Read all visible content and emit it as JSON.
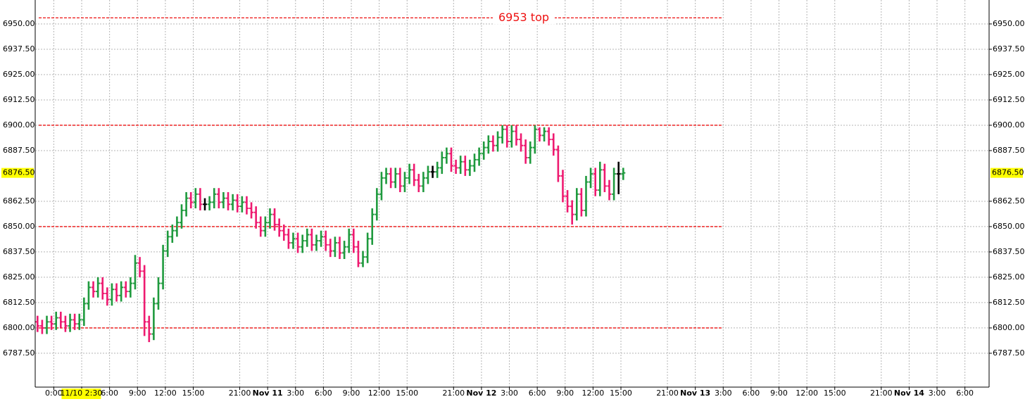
{
  "chart_data": {
    "type": "ohlc",
    "x": [
      0.25,
      0.75,
      1.25,
      1.75,
      2.25,
      2.75,
      3.25,
      3.75,
      4.25,
      4.75,
      5.25,
      5.75,
      6.25,
      6.75,
      7.25,
      7.75,
      8.25,
      8.75,
      9.25,
      9.75,
      10.25,
      10.75,
      11.25,
      11.75,
      12.25,
      12.75,
      13.25,
      13.75,
      14.25,
      14.75,
      15.25,
      15.75,
      16.25,
      16.75,
      17.25,
      17.75,
      18.25,
      18.75,
      19.25,
      19.75,
      20.25,
      20.75,
      21.25,
      21.75,
      22.25,
      22.75,
      23.25,
      23.75,
      24.25,
      24.75,
      25.25,
      25.75,
      26.25,
      26.75,
      27.25,
      27.75,
      28.25,
      28.75,
      29.25,
      29.75,
      30.25,
      30.75,
      31.25,
      31.75,
      32.25,
      32.75,
      33.25,
      33.75,
      34.25,
      34.75,
      35.25,
      35.75,
      36.25,
      36.75,
      37.25,
      37.75,
      38.25,
      38.75,
      39.25,
      39.75,
      40.25,
      40.75,
      41.25,
      41.75,
      42.25,
      42.75,
      43.25,
      43.75,
      44.25,
      44.75,
      45.25,
      45.75,
      46.25,
      46.75,
      47.25,
      47.75,
      48.25,
      48.75,
      49.25,
      49.75,
      50.25,
      50.75,
      51.25,
      51.75,
      52.25,
      52.75,
      53.25,
      53.75,
      54.25,
      54.75,
      55.25,
      55.75,
      56.25,
      56.75,
      57.25,
      57.75,
      58.25,
      58.75,
      59.25,
      59.75,
      60.25,
      60.75,
      61.25,
      61.75,
      62.25,
      62.75,
      63.25
    ],
    "open": [
      6803,
      6801,
      6800,
      6803,
      6802,
      6805,
      6803,
      6801,
      6804,
      6802,
      6804,
      6812,
      6820,
      6818,
      6822,
      6817,
      6814,
      6819,
      6816,
      6820,
      6818,
      6822,
      6832,
      6828,
      6803,
      6797,
      6812,
      6822,
      6838,
      6845,
      6848,
      6852,
      6858,
      6864,
      6862,
      6866,
      6861,
      6861,
      6862,
      6866,
      6862,
      6864,
      6861,
      6863,
      6860,
      6862,
      6859,
      6857,
      6852,
      6848,
      6852,
      6856,
      6851,
      6848,
      6846,
      6842,
      6844,
      6840,
      6843,
      6846,
      6841,
      6843,
      6845,
      6841,
      6838,
      6842,
      6837,
      6840,
      6846,
      6840,
      6832,
      6835,
      6844,
      6856,
      6866,
      6874,
      6876,
      6872,
      6876,
      6870,
      6874,
      6878,
      6873,
      6870,
      6874,
      6877,
      6877,
      6879,
      6884,
      6886,
      6880,
      6879,
      6882,
      6878,
      6880,
      6883,
      6886,
      6889,
      6892,
      6890,
      6894,
      6898,
      6892,
      6897,
      6893,
      6890,
      6884,
      6889,
      6898,
      6895,
      6897,
      6893,
      6888,
      6875,
      6865,
      6860,
      6856,
      6866,
      6858,
      6872,
      6876,
      6868,
      6878,
      6870,
      6866,
      6876,
      6876
    ],
    "high": [
      6806,
      6804,
      6806,
      6806,
      6808,
      6808,
      6806,
      6807,
      6807,
      6807,
      6815,
      6823,
      6823,
      6825,
      6825,
      6820,
      6822,
      6822,
      6823,
      6823,
      6825,
      6836,
      6835,
      6831,
      6806,
      6815,
      6825,
      6841,
      6848,
      6851,
      6855,
      6861,
      6867,
      6867,
      6869,
      6869,
      6864,
      6865,
      6869,
      6869,
      6867,
      6867,
      6866,
      6866,
      6865,
      6865,
      6862,
      6860,
      6855,
      6855,
      6859,
      6859,
      6854,
      6851,
      6849,
      6847,
      6847,
      6846,
      6849,
      6849,
      6846,
      6848,
      6848,
      6844,
      6845,
      6845,
      6843,
      6849,
      6849,
      6843,
      6838,
      6847,
      6859,
      6869,
      6877,
      6879,
      6879,
      6879,
      6879,
      6877,
      6881,
      6881,
      6876,
      6877,
      6880,
      6880,
      6882,
      6887,
      6889,
      6889,
      6883,
      6885,
      6885,
      6883,
      6886,
      6889,
      6892,
      6895,
      6895,
      6897,
      6900,
      6900,
      6900,
      6900,
      6896,
      6893,
      6892,
      6900,
      6899,
      6899,
      6899,
      6896,
      6890,
      6878,
      6868,
      6863,
      6869,
      6869,
      6875,
      6879,
      6879,
      6882,
      6881,
      6873,
      6879,
      6882,
      6879
    ],
    "low": [
      6798,
      6797,
      6797,
      6799,
      6799,
      6800,
      6798,
      6798,
      6799,
      6799,
      6801,
      6809,
      6815,
      6815,
      6814,
      6811,
      6811,
      6813,
      6813,
      6815,
      6815,
      6819,
      6825,
      6796,
      6793,
      6794,
      6809,
      6819,
      6835,
      6842,
      6845,
      6849,
      6855,
      6859,
      6859,
      6858,
      6858,
      6858,
      6859,
      6859,
      6859,
      6858,
      6858,
      6857,
      6857,
      6856,
      6854,
      6849,
      6845,
      6845,
      6849,
      6848,
      6845,
      6843,
      6839,
      6839,
      6837,
      6837,
      6840,
      6838,
      6838,
      6840,
      6838,
      6835,
      6835,
      6834,
      6834,
      6837,
      6837,
      6830,
      6830,
      6832,
      6841,
      6853,
      6863,
      6871,
      6869,
      6869,
      6867,
      6867,
      6871,
      6870,
      6867,
      6867,
      6871,
      6874,
      6874,
      6876,
      6881,
      6877,
      6876,
      6876,
      6875,
      6875,
      6877,
      6880,
      6883,
      6886,
      6887,
      6887,
      6891,
      6889,
      6889,
      6890,
      6887,
      6881,
      6881,
      6886,
      6892,
      6892,
      6890,
      6885,
      6872,
      6862,
      6857,
      6851,
      6853,
      6855,
      6855,
      6869,
      6865,
      6865,
      6867,
      6863,
      6863,
      6866,
      6873
    ],
    "close": [
      6801,
      6800,
      6803,
      6802,
      6805,
      6803,
      6801,
      6804,
      6802,
      6804,
      6812,
      6820,
      6818,
      6822,
      6817,
      6814,
      6819,
      6816,
      6820,
      6818,
      6822,
      6832,
      6828,
      6803,
      6797,
      6812,
      6822,
      6838,
      6845,
      6848,
      6852,
      6858,
      6864,
      6862,
      6866,
      6861,
      6861,
      6862,
      6866,
      6862,
      6864,
      6861,
      6863,
      6860,
      6862,
      6859,
      6857,
      6852,
      6848,
      6852,
      6856,
      6851,
      6848,
      6846,
      6842,
      6844,
      6840,
      6843,
      6846,
      6841,
      6843,
      6845,
      6841,
      6838,
      6842,
      6837,
      6840,
      6846,
      6840,
      6832,
      6835,
      6844,
      6856,
      6866,
      6874,
      6876,
      6872,
      6876,
      6870,
      6874,
      6878,
      6873,
      6870,
      6874,
      6877,
      6877,
      6879,
      6884,
      6886,
      6880,
      6879,
      6882,
      6878,
      6880,
      6883,
      6886,
      6889,
      6892,
      6890,
      6894,
      6898,
      6892,
      6897,
      6893,
      6890,
      6884,
      6889,
      6898,
      6895,
      6897,
      6893,
      6888,
      6875,
      6865,
      6860,
      6856,
      6866,
      6858,
      6872,
      6876,
      6868,
      6878,
      6870,
      6866,
      6876,
      6876,
      6876.5
    ],
    "up_color": "#1f9a3e",
    "down_color": "#ee1a70",
    "flat_color": "#000000",
    "xlim": [
      0,
      102.6
    ],
    "xticks": [
      {
        "value": 2,
        "label": "0:00"
      },
      {
        "value": 5,
        "label": "3:00"
      },
      {
        "value": 8,
        "label": "6:00"
      },
      {
        "value": 11,
        "label": "9:00"
      },
      {
        "value": 14,
        "label": "12:00"
      },
      {
        "value": 17,
        "label": "15:00"
      },
      {
        "value": 22,
        "label": "21:00"
      },
      {
        "value": 25,
        "label": "Nov 11",
        "bold": true
      },
      {
        "value": 28,
        "label": "3:00"
      },
      {
        "value": 31,
        "label": "6:00"
      },
      {
        "value": 34,
        "label": "9:00"
      },
      {
        "value": 37,
        "label": "12:00"
      },
      {
        "value": 40,
        "label": "15:00"
      },
      {
        "value": 45,
        "label": "21:00"
      },
      {
        "value": 48,
        "label": "Nov 12",
        "bold": true
      },
      {
        "value": 51,
        "label": "3:00"
      },
      {
        "value": 54,
        "label": "6:00"
      },
      {
        "value": 57,
        "label": "9:00"
      },
      {
        "value": 60,
        "label": "12:00"
      },
      {
        "value": 63,
        "label": "15:00"
      },
      {
        "value": 68,
        "label": "21:00"
      },
      {
        "value": 71,
        "label": "Nov 13",
        "bold": true
      },
      {
        "value": 74,
        "label": "3:00"
      },
      {
        "value": 77,
        "label": "6:00"
      },
      {
        "value": 80,
        "label": "9:00"
      },
      {
        "value": 83,
        "label": "12:00"
      },
      {
        "value": 86,
        "label": "15:00"
      },
      {
        "value": 91,
        "label": "21:00"
      },
      {
        "value": 94,
        "label": "Nov 14",
        "bold": true
      },
      {
        "value": 97,
        "label": "3:00"
      },
      {
        "value": 100,
        "label": "6:00"
      }
    ],
    "ylim": [
      6770.8,
      6961.8
    ],
    "yticks": [
      {
        "value": 6787.5,
        "label": "6787.50"
      },
      {
        "value": 6800,
        "label": "6800.00"
      },
      {
        "value": 6812.5,
        "label": "6812.50"
      },
      {
        "value": 6825,
        "label": "6825.00"
      },
      {
        "value": 6837.5,
        "label": "6837.50"
      },
      {
        "value": 6850,
        "label": "6850.00"
      },
      {
        "value": 6862.5,
        "label": "6862.50"
      },
      {
        "value": 6887.5,
        "label": "6887.50"
      },
      {
        "value": 6900,
        "label": "6900.00"
      },
      {
        "value": 6912.5,
        "label": "6912.50"
      },
      {
        "value": 6925,
        "label": "6925.00"
      },
      {
        "value": 6937.5,
        "label": "6937.50"
      },
      {
        "value": 6950,
        "label": "6950.00"
      }
    ],
    "grid": true,
    "current_price": {
      "value": 6876.5,
      "label": "6876.50"
    },
    "crosshair": {
      "x": 4.5,
      "label": "11/10 2:30"
    },
    "level_color": "#ee1111",
    "levels": [
      {
        "value": 6953,
        "label": "6953 top"
      },
      {
        "value": 6900
      },
      {
        "value": 6850
      },
      {
        "value": 6800
      }
    ]
  }
}
